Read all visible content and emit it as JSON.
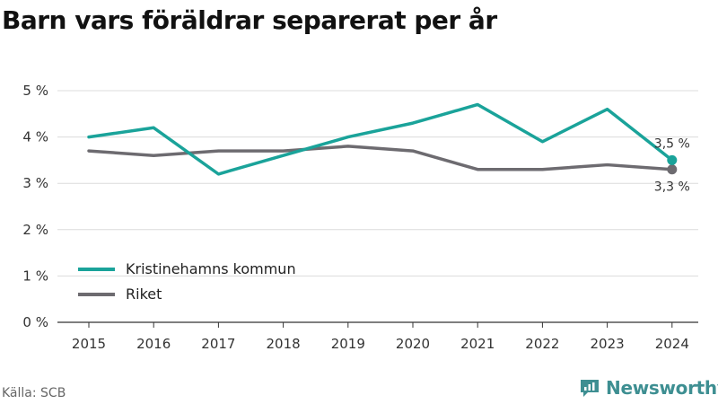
{
  "chart_data": {
    "type": "line",
    "title": "Barn vars föräldrar separerat per år",
    "x": [
      "2015",
      "2016",
      "2017",
      "2018",
      "2019",
      "2020",
      "2021",
      "2022",
      "2023",
      "2024"
    ],
    "series": [
      {
        "name": "Kristinehamns kommun",
        "color": "#1aa39a",
        "values": [
          4.0,
          4.2,
          3.2,
          3.6,
          4.0,
          4.3,
          4.7,
          3.9,
          4.6,
          3.5
        ],
        "end_label": "3,5 %"
      },
      {
        "name": "Riket",
        "color": "#6d6b70",
        "values": [
          3.7,
          3.6,
          3.7,
          3.7,
          3.8,
          3.7,
          3.3,
          3.3,
          3.4,
          3.3
        ],
        "end_label": "3,3 %"
      }
    ],
    "ylim": [
      0,
      5
    ],
    "yticks": [
      {
        "value": 0,
        "label": "0 %"
      },
      {
        "value": 1,
        "label": "1 %"
      },
      {
        "value": 2,
        "label": "2 %"
      },
      {
        "value": 3,
        "label": "3 %"
      },
      {
        "value": 4,
        "label": "4 %"
      },
      {
        "value": 5,
        "label": "5 %"
      }
    ],
    "grid": true,
    "legend_position": "bottom-left"
  },
  "footer": {
    "source": "Källa: SCB",
    "brand": "Newsworthy",
    "brand_color": "#3e8f92"
  }
}
